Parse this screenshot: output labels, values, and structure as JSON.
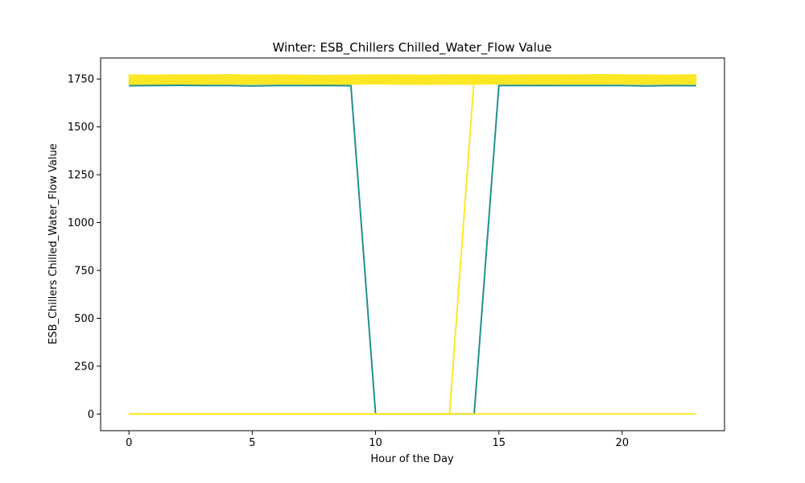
{
  "chart_data": {
    "type": "line",
    "title": "Winter: ESB_Chillers Chilled_Water_Flow Value",
    "xlabel": "Hour of the Day",
    "ylabel": "ESB_Chillers Chilled_Water_Flow Value",
    "xlim": [
      -1.15,
      24.15
    ],
    "ylim": [
      -87,
      1860
    ],
    "xticks": [
      0,
      5,
      10,
      15,
      20
    ],
    "yticks": [
      0,
      250,
      500,
      750,
      1000,
      1250,
      1500,
      1750
    ],
    "grid": false,
    "legend": "none",
    "x": [
      0,
      1,
      2,
      3,
      4,
      5,
      6,
      7,
      8,
      9,
      10,
      11,
      12,
      13,
      14,
      15,
      16,
      17,
      18,
      19,
      20,
      21,
      22,
      23
    ],
    "series": [
      {
        "color": "#21918c",
        "values": [
          1715,
          1716,
          1717,
          1716,
          1716,
          1714,
          1716,
          1716,
          1716,
          1715,
          0,
          0,
          0,
          0,
          0,
          1716,
          1716,
          1716,
          1716,
          1716,
          1716,
          1714,
          1716,
          1715
        ]
      },
      {
        "color": "#fde725",
        "values": [
          0,
          0,
          0,
          0,
          0,
          0,
          0,
          0,
          0,
          0,
          0,
          0,
          0,
          0,
          1760,
          1762,
          1762,
          1761,
          1762,
          1762,
          1763,
          1762,
          1762,
          1760
        ]
      },
      {
        "color": "#fde725",
        "values": [
          0,
          0,
          0,
          0,
          0,
          0,
          0,
          0,
          0,
          0,
          0,
          0,
          0,
          0,
          0,
          0,
          0,
          0,
          0,
          0,
          0,
          0,
          0,
          0
        ]
      },
      {
        "color": "#fde725",
        "band": true,
        "values": [
          1745,
          1746,
          1747,
          1746,
          1748,
          1746,
          1746,
          1745,
          1744,
          1746,
          1747,
          1746,
          1745,
          1747,
          1746,
          1746,
          1746,
          1747,
          1746,
          1747,
          1748,
          1746,
          1745,
          1746
        ],
        "band_low": [
          1720,
          1722,
          1723,
          1722,
          1724,
          1722,
          1724,
          1723,
          1721,
          1722,
          1724,
          1722,
          1721,
          1723,
          1722,
          1724,
          1723,
          1722,
          1724,
          1723,
          1724,
          1722,
          1723,
          1721
        ],
        "band_high": [
          1772,
          1771,
          1773,
          1772,
          1774,
          1771,
          1772,
          1771,
          1770,
          1771,
          1773,
          1772,
          1771,
          1773,
          1772,
          1771,
          1772,
          1773,
          1772,
          1774,
          1773,
          1772,
          1771,
          1773
        ]
      }
    ]
  }
}
